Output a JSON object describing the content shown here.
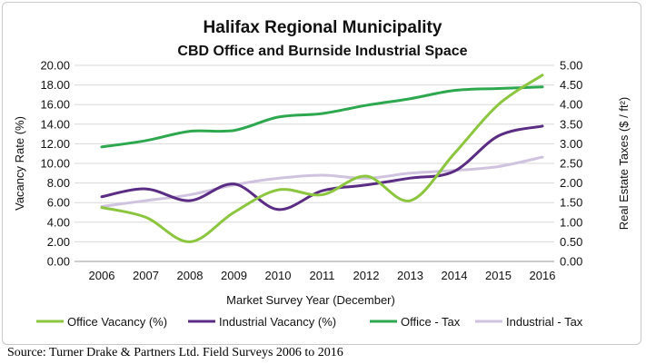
{
  "chart_data": {
    "type": "line",
    "title": "Halifax Regional Municipality",
    "subtitle": "CBD Office and Burnside Industrial Space",
    "xlabel": "Market Survey Year (December)",
    "ylabel": "Vacancy Rate (%)",
    "ylabel_right": "Real Estate Taxes ($ / ft²)",
    "categories": [
      "2006",
      "2007",
      "2008",
      "2009",
      "2010",
      "2011",
      "2012",
      "2013",
      "2014",
      "2015",
      "2016"
    ],
    "ylim": [
      0,
      20
    ],
    "y_ticks": [
      "0.00",
      "2.00",
      "4.00",
      "6.00",
      "8.00",
      "10.00",
      "12.00",
      "14.00",
      "16.00",
      "18.00",
      "20.00"
    ],
    "ylim_right": [
      0,
      5
    ],
    "y_ticks_right": [
      "0.00",
      "0.50",
      "1.00",
      "1.50",
      "2.00",
      "2.50",
      "3.00",
      "3.50",
      "4.00",
      "4.50",
      "5.00"
    ],
    "grid": "horizontal",
    "legend_position": "bottom",
    "series": [
      {
        "name": "Office Vacancy (%)",
        "axis": "left",
        "color": "#8cc63f",
        "values": [
          5.5,
          4.5,
          2.0,
          5.0,
          7.3,
          6.8,
          8.7,
          6.2,
          11.0,
          16.0,
          19.0
        ]
      },
      {
        "name": "Industrial Vacancy (%)",
        "axis": "left",
        "color": "#5b2c83",
        "values": [
          6.6,
          7.4,
          6.2,
          7.9,
          5.3,
          7.2,
          7.8,
          8.5,
          9.2,
          12.8,
          13.8
        ]
      },
      {
        "name": "Office - Tax",
        "axis": "right",
        "color": "#2ea84f",
        "values": [
          2.92,
          3.08,
          3.32,
          3.34,
          3.68,
          3.77,
          3.98,
          4.15,
          4.36,
          4.41,
          4.45
        ]
      },
      {
        "name": "Industrial - Tax",
        "axis": "right",
        "color": "#cfc3df",
        "values": [
          1.4,
          1.55,
          1.7,
          1.95,
          2.12,
          2.2,
          2.12,
          2.25,
          2.32,
          2.42,
          2.66
        ]
      }
    ]
  },
  "source_note": "Source: Turner Drake & Partners Ltd. Field Surveys 2006 to 2016"
}
